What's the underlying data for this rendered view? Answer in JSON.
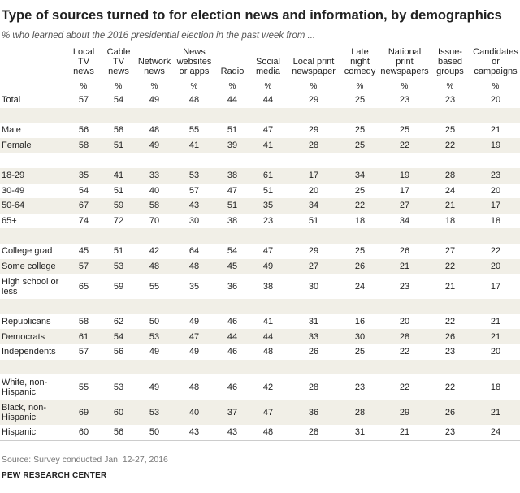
{
  "title": "Type of sources turned to for election news and information, by demographics",
  "subtitle": "% who learned about the 2016 presidential election in the past week from ...",
  "table": {
    "columns": [
      "Local\nTV\nnews",
      "Cable\nTV\nnews",
      "Network\nnews",
      "News\nwebsites\nor apps",
      "Radio",
      "Social\nmedia",
      "Local print\nnewspaper",
      "Late\nnight\ncomedy",
      "National\nprint\nnewspapers",
      "Issue-\nbased\ngroups",
      "Candidates\nor\ncampaigns"
    ],
    "units": [
      "%",
      "%",
      "%",
      "%",
      "%",
      "%",
      "%",
      "%",
      "%",
      "%",
      "%"
    ],
    "groups": [
      {
        "rows": [
          {
            "label": "Total",
            "values": [
              57,
              54,
              49,
              48,
              44,
              44,
              29,
              25,
              23,
              23,
              20
            ]
          }
        ]
      },
      {
        "rows": [
          {
            "label": "Male",
            "values": [
              56,
              58,
              48,
              55,
              51,
              47,
              29,
              25,
              25,
              25,
              21
            ]
          },
          {
            "label": "Female",
            "values": [
              58,
              51,
              49,
              41,
              39,
              41,
              28,
              25,
              22,
              22,
              19
            ]
          }
        ]
      },
      {
        "rows": [
          {
            "label": "18-29",
            "values": [
              35,
              41,
              33,
              53,
              38,
              61,
              17,
              34,
              19,
              28,
              23
            ]
          },
          {
            "label": "30-49",
            "values": [
              54,
              51,
              40,
              57,
              47,
              51,
              20,
              25,
              17,
              24,
              20
            ]
          },
          {
            "label": "50-64",
            "values": [
              67,
              59,
              58,
              43,
              51,
              35,
              34,
              22,
              27,
              21,
              17
            ]
          },
          {
            "label": "65+",
            "values": [
              74,
              72,
              70,
              30,
              38,
              23,
              51,
              18,
              34,
              18,
              18
            ]
          }
        ]
      },
      {
        "rows": [
          {
            "label": "College grad",
            "values": [
              45,
              51,
              42,
              64,
              54,
              47,
              29,
              25,
              26,
              27,
              22
            ]
          },
          {
            "label": "Some college",
            "values": [
              57,
              53,
              48,
              48,
              45,
              49,
              27,
              26,
              21,
              22,
              20
            ]
          },
          {
            "label": "High school or\nless",
            "values": [
              65,
              59,
              55,
              35,
              36,
              38,
              30,
              24,
              23,
              21,
              17
            ]
          }
        ]
      },
      {
        "rows": [
          {
            "label": "Republicans",
            "values": [
              58,
              62,
              50,
              49,
              46,
              41,
              31,
              16,
              20,
              22,
              21
            ]
          },
          {
            "label": "Democrats",
            "values": [
              61,
              54,
              53,
              47,
              44,
              44,
              33,
              30,
              28,
              26,
              21
            ]
          },
          {
            "label": "Independents",
            "values": [
              57,
              56,
              49,
              49,
              46,
              48,
              26,
              25,
              22,
              23,
              20
            ]
          }
        ]
      },
      {
        "rows": [
          {
            "label": "White, non-\nHispanic",
            "values": [
              55,
              53,
              49,
              48,
              46,
              42,
              28,
              23,
              22,
              22,
              18
            ]
          },
          {
            "label": "Black, non-\nHispanic",
            "values": [
              69,
              60,
              53,
              40,
              37,
              47,
              36,
              28,
              29,
              26,
              21
            ]
          },
          {
            "label": "Hispanic",
            "values": [
              60,
              56,
              50,
              43,
              43,
              48,
              28,
              31,
              21,
              23,
              24
            ]
          }
        ]
      }
    ]
  },
  "source": "Source: Survey conducted Jan. 12-27, 2016",
  "footer": "PEW RESEARCH CENTER"
}
